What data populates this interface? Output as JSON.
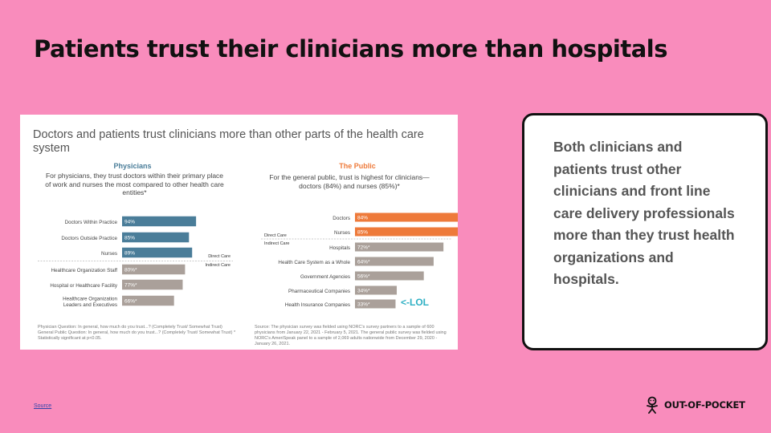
{
  "slide": {
    "title": "Patients trust their clinicians more than hospitals",
    "note": "Both clinicians and patients trust other clinicians and front line care delivery professionals more than they trust health organizations and hospitals.",
    "source_label": "Source",
    "logo_text": "OUT-OF-POCKET"
  },
  "figure": {
    "title": "Doctors and patients trust clinicians more than other parts of the health care system",
    "annotation": "<-LOL",
    "direct_care_label": "Direct Care",
    "indirect_care_label": "Indirect Care",
    "physicians_footnote": "Physician Question: In general, how much do you trust...? (Completely Trust/ Somewhat Trust) General Public Question: In general, how much do you trust...? (Completely Trust/ Somewhat Trust) * Statistically significant at p<0.05.",
    "public_footnote": "Source: The physician survey was fielded using NORC's survey partners to a sample of 600 physicians from January 22, 2021 - February 5, 2021. The general public survey was fielded using NORC's AmeriSpeak panel to a sample of 2,069 adults nationwide from December 29, 2020 - January 26, 2021."
  },
  "chart_data": [
    {
      "type": "bar",
      "title": "Physicians",
      "subtitle": "For physicians, they trust doctors within their primary place of work and nurses the most compared to other health care entities*",
      "categories": [
        "Doctors Within Practice",
        "Doctors Outside Practice",
        "Nurses",
        "Healthcare Organization Staff",
        "Hospital or Healthcare Facility",
        "Healthcare Organization Leaders and Executives"
      ],
      "values": [
        94,
        85,
        89,
        80,
        77,
        66
      ],
      "labels": [
        "94%",
        "85%",
        "89%",
        "80%*",
        "77%*",
        "66%*"
      ],
      "groups": [
        "Direct Care",
        "Direct Care",
        "Direct Care",
        "Indirect Care",
        "Indirect Care",
        "Indirect Care"
      ],
      "colors": {
        "direct": "#4a7d99",
        "indirect": "#aaa09a"
      },
      "xlim": [
        0,
        100
      ]
    },
    {
      "type": "bar",
      "title": "The Public",
      "subtitle": "For the general public, trust is highest for clinicians—doctors (84%) and nurses (85%)*",
      "categories": [
        "Doctors",
        "Nurses",
        "Hospitals",
        "Health Care System as a Whole",
        "Government Agencies",
        "Pharmaceutical Companies",
        "Health Insurance Companies"
      ],
      "values": [
        84,
        85,
        72,
        64,
        56,
        34,
        33
      ],
      "labels": [
        "84%",
        "85%",
        "72%*",
        "64%*",
        "56%*",
        "34%*",
        "33%*"
      ],
      "groups": [
        "Direct Care",
        "Direct Care",
        "Indirect Care",
        "Indirect Care",
        "Indirect Care",
        "Indirect Care",
        "Indirect Care"
      ],
      "colors": {
        "direct": "#ee7a3a",
        "indirect": "#aaa09a"
      },
      "xlim": [
        0,
        100
      ]
    }
  ]
}
